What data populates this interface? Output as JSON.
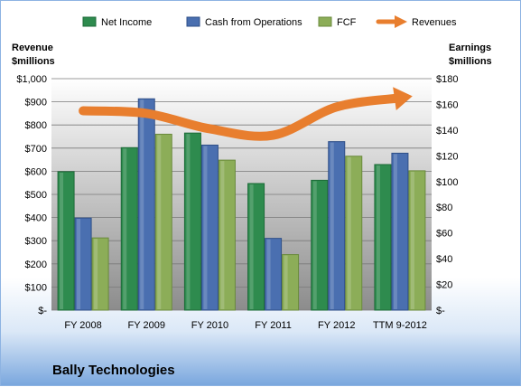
{
  "chart_data": {
    "type": "bar",
    "title": "",
    "footer_title": "Bally Technologies",
    "categories": [
      "FY 2008",
      "FY 2009",
      "FY 2010",
      "FY 2011",
      "FY 2012",
      "TTM 9-2012"
    ],
    "left_axis": {
      "title_line1": "Revenue",
      "title_line2": "$millions",
      "ylim": [
        0,
        1000
      ],
      "ticks": [
        "$-",
        "$100",
        "$200",
        "$300",
        "$400",
        "$500",
        "$600",
        "$700",
        "$800",
        "$900",
        "$1,000"
      ]
    },
    "right_axis": {
      "title_line1": "Earnings",
      "title_line2": "$millions",
      "ylim": [
        0,
        180
      ],
      "ticks": [
        "$-",
        "$20",
        "$40",
        "$60",
        "$80",
        "$100",
        "$120",
        "$140",
        "$160",
        "$180"
      ]
    },
    "series": [
      {
        "name": "Net Income",
        "axis": "left",
        "color": "#2e8b4e",
        "values": [
          598,
          702,
          765,
          547,
          561,
          629
        ]
      },
      {
        "name": "Cash from Operations",
        "axis": "left",
        "color": "#4a6fb0",
        "values": [
          398,
          913,
          713,
          310,
          728,
          678
        ]
      },
      {
        "name": "FCF",
        "axis": "left",
        "color": "#8cad58",
        "values": [
          312,
          760,
          648,
          240,
          665,
          602
        ]
      },
      {
        "name": "Revenues",
        "axis": "right",
        "type": "line-arrow",
        "color": "#e87e2e",
        "values": [
          155,
          153,
          141,
          136,
          158,
          165
        ]
      }
    ],
    "legend_position": "top",
    "grid": true
  }
}
